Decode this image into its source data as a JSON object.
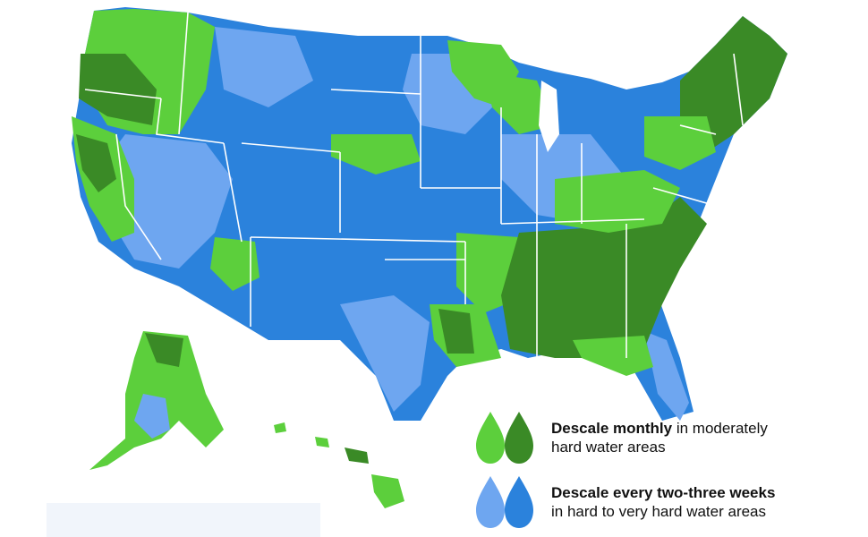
{
  "colors": {
    "moderate_light": "#5ccf3c",
    "moderate_dark": "#3a8a26",
    "hard_light": "#6ea6f0",
    "hard_dark": "#2b82dc",
    "border": "#ffffff"
  },
  "legend": [
    {
      "key": "moderately-hard",
      "bold": "Descale monthly",
      "rest_line1": " in moderately",
      "line2": "hard water areas",
      "drop_colors": [
        "#5ccf3c",
        "#3a8a26"
      ]
    },
    {
      "key": "hard-very-hard",
      "bold": "Descale every two-three weeks",
      "rest_line1": "",
      "line2": "in hard to very hard water areas",
      "drop_colors": [
        "#6ea6f0",
        "#2b82dc"
      ]
    }
  ],
  "icons": [
    "water-drop-icon"
  ]
}
